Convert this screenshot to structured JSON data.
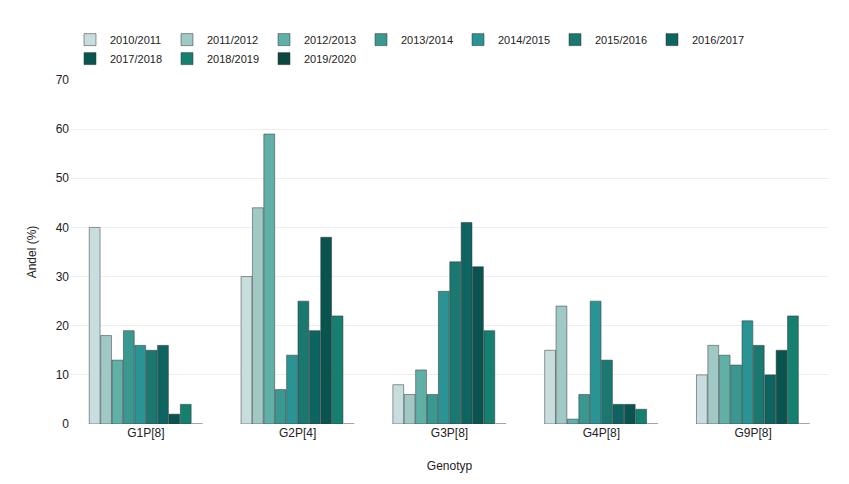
{
  "chart_data": {
    "type": "bar",
    "xlabel": "Genotyp",
    "ylabel": "Andel (%)",
    "categories": [
      "G1P[8]",
      "G2P[4]",
      "G3P[8]",
      "G4P[8]",
      "G9P[8]"
    ],
    "series": [
      {
        "name": "2010/2011",
        "color": "#c8dede",
        "values": [
          40,
          30,
          8,
          15,
          10
        ]
      },
      {
        "name": "2011/2012",
        "color": "#a0c8c4",
        "values": [
          18,
          44,
          6,
          24,
          16
        ]
      },
      {
        "name": "2012/2013",
        "color": "#60b0a8",
        "values": [
          13,
          59,
          11,
          1,
          14
        ]
      },
      {
        "name": "2013/2014",
        "color": "#3a9890",
        "values": [
          19,
          7,
          6,
          6,
          12
        ]
      },
      {
        "name": "2014/2015",
        "color": "#2a9494",
        "values": [
          16,
          14,
          27,
          25,
          21
        ]
      },
      {
        "name": "2015/2016",
        "color": "#1a7870",
        "values": [
          15,
          25,
          33,
          13,
          16
        ]
      },
      {
        "name": "2016/2017",
        "color": "#0e6460",
        "values": [
          16,
          19,
          41,
          4,
          10
        ]
      },
      {
        "name": "2017/2018",
        "color": "#0a5450",
        "values": [
          2,
          38,
          32,
          4,
          15
        ]
      },
      {
        "name": "2018/2019",
        "color": "#158070",
        "values": [
          4,
          22,
          19,
          3,
          22
        ]
      },
      {
        "name": "2019/2020",
        "color": "#0a4840",
        "values": [
          0,
          0,
          0,
          0,
          0
        ]
      }
    ],
    "ylim": [
      0,
      70
    ],
    "yticks": [
      0,
      10,
      20,
      30,
      40,
      50,
      60,
      70
    ],
    "grid": true,
    "legend": "top left"
  }
}
